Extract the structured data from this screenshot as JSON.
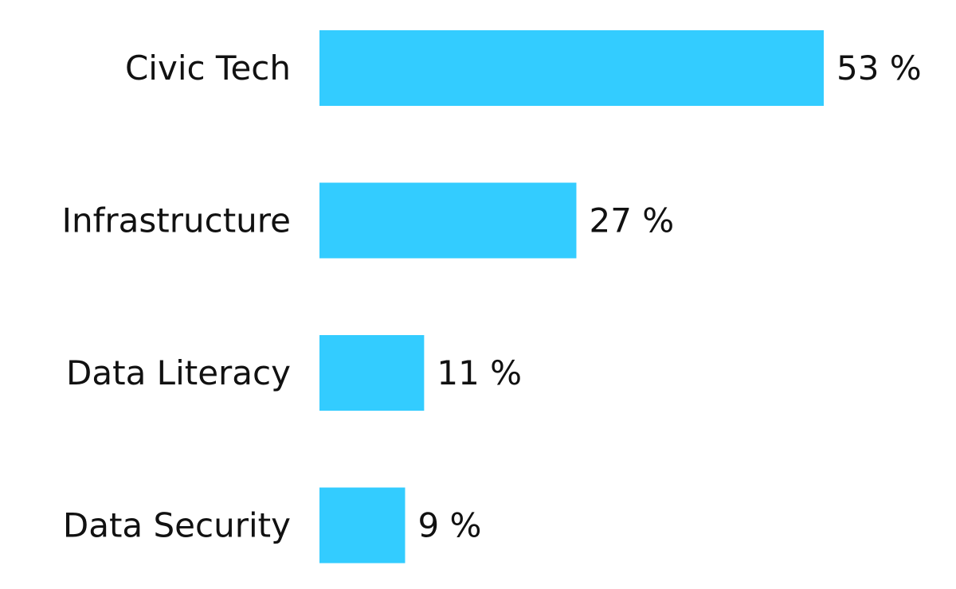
{
  "chart_data": {
    "type": "bar",
    "orientation": "horizontal",
    "categories": [
      "Civic Tech",
      "Infrastructure",
      "Data Literacy",
      "Data Security"
    ],
    "values": [
      53,
      27,
      11,
      9
    ],
    "value_labels": [
      "53 %",
      "27 %",
      "11 %",
      "9 %"
    ],
    "xlim": [
      0,
      53
    ],
    "grid": false,
    "legend": "none",
    "colors": {
      "bar": "#33ccff",
      "text": "#111111",
      "background": "#ffffff"
    }
  }
}
